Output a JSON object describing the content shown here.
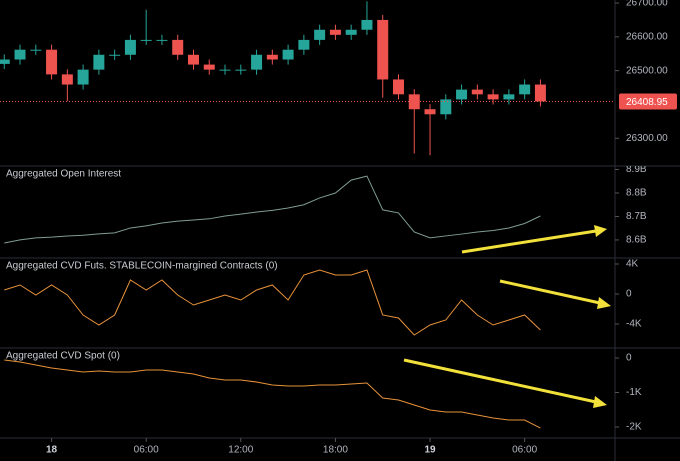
{
  "chart_data": [
    {
      "type": "candlestick",
      "x": [
        -3,
        -2,
        -1,
        0,
        1,
        2,
        3,
        4,
        5,
        6,
        7,
        8,
        9,
        10,
        11,
        12,
        13,
        14,
        15,
        16,
        17,
        18,
        19,
        20,
        21,
        22,
        23,
        24,
        25,
        26,
        27,
        28,
        29,
        30,
        31
      ],
      "open": [
        26520,
        26533,
        26562,
        26562,
        26489,
        26459,
        26503,
        26547,
        26547,
        26591,
        26591,
        26591,
        26547,
        26518,
        26503,
        26503,
        26503,
        26547,
        26533,
        26562,
        26591,
        26621,
        26606,
        26621,
        26650,
        26474,
        26430,
        26386,
        26371,
        26415,
        26444,
        26430,
        26415,
        26430,
        26459
      ],
      "high": [
        26548,
        26577,
        26577,
        26577,
        26504,
        26518,
        26562,
        26562,
        26606,
        26680,
        26606,
        26606,
        26562,
        26533,
        26518,
        26518,
        26562,
        26562,
        26577,
        26606,
        26636,
        26636,
        26636,
        26705,
        26665,
        26489,
        26445,
        26401,
        26430,
        26459,
        26459,
        26445,
        26445,
        26474,
        26474
      ],
      "low": [
        26505,
        26518,
        26547,
        26474,
        26410,
        26444,
        26488,
        26532,
        26532,
        26576,
        26576,
        26532,
        26503,
        26488,
        26488,
        26488,
        26488,
        26518,
        26518,
        26547,
        26576,
        26591,
        26591,
        26606,
        26420,
        26415,
        26255,
        26250,
        26356,
        26400,
        26415,
        26400,
        26400,
        26415,
        26394
      ],
      "close": [
        26533,
        26562,
        26562,
        26489,
        26459,
        26503,
        26547,
        26547,
        26591,
        26591,
        26591,
        26547,
        26518,
        26503,
        26503,
        26503,
        26547,
        26533,
        26562,
        26591,
        26621,
        26606,
        26621,
        26650,
        26474,
        26430,
        26386,
        26371,
        26415,
        26444,
        26430,
        26415,
        26430,
        26459,
        26409
      ],
      "up_color": "#26a69a",
      "down_color": "#ef5350",
      "xlim": [
        -3.27,
        35.73
      ],
      "ylim": [
        26221,
        26709
      ],
      "yticks": [
        {
          "value": 26300,
          "label": "26300.00"
        },
        {
          "value": 26500,
          "label": "26500.00"
        },
        {
          "value": 26600,
          "label": "26600.00"
        },
        {
          "value": 26700,
          "label": "26700.00"
        }
      ],
      "last_price": 26408.95,
      "last_price_color": "#ef5350"
    },
    {
      "type": "line",
      "title": "Aggregated Open Interest",
      "x": [
        -3,
        -2,
        -1,
        0,
        1,
        2,
        3,
        4,
        5,
        6,
        7,
        8,
        9,
        10,
        11,
        12,
        13,
        14,
        15,
        16,
        17,
        18,
        19,
        20,
        21,
        22,
        23,
        24,
        25,
        26,
        27,
        28,
        29,
        30,
        31
      ],
      "values": [
        8.587,
        8.6,
        8.609,
        8.612,
        8.617,
        8.62,
        8.626,
        8.63,
        8.651,
        8.66,
        8.672,
        8.68,
        8.685,
        8.69,
        8.702,
        8.71,
        8.719,
        8.726,
        8.736,
        8.75,
        8.779,
        8.8,
        8.855,
        8.872,
        8.728,
        8.715,
        8.634,
        8.609,
        8.617,
        8.625,
        8.634,
        8.64,
        8.651,
        8.67,
        8.702
      ],
      "color": "#7f9c95",
      "xlim": [
        -3.27,
        35.73
      ],
      "ylim": [
        8.523,
        8.915
      ],
      "yticks": [
        {
          "value": 8.6,
          "label": "8.6B"
        },
        {
          "value": 8.7,
          "label": "8.7B"
        },
        {
          "value": 8.8,
          "label": "8.8B"
        },
        {
          "value": 8.9,
          "label": "8.9B"
        }
      ]
    },
    {
      "type": "line",
      "title": "Aggregated CVD Futs. STABLECOIN-margined Contracts (0)",
      "x": [
        -3,
        -2,
        -1,
        0,
        1,
        2,
        3,
        4,
        5,
        6,
        7,
        8,
        9,
        10,
        11,
        12,
        13,
        14,
        15,
        16,
        17,
        18,
        19,
        20,
        21,
        22,
        23,
        24,
        25,
        26,
        27,
        28,
        29,
        30,
        31
      ],
      "values": [
        533,
        1200,
        -133,
        1200,
        -133,
        -2800,
        -4133,
        -2800,
        1867,
        533,
        1867,
        -133,
        -1467,
        -800,
        -133,
        -800,
        533,
        1200,
        -800,
        2533,
        3200,
        2533,
        2533,
        3200,
        -2800,
        -3200,
        -5467,
        -4133,
        -3467,
        -800,
        -2800,
        -4133,
        -3467,
        -2800,
        -4800
      ],
      "color": "#e8923a",
      "xlim": [
        -3.27,
        35.73
      ],
      "ylim": [
        -7200,
        4800
      ],
      "yticks": [
        {
          "value": -4000,
          "label": "-4K"
        },
        0,
        {
          "value": 4000,
          "label": "4K"
        }
      ]
    },
    {
      "type": "line",
      "title": "Aggregated CVD Spot (0)",
      "x": [
        -3,
        -2,
        -1,
        0,
        1,
        2,
        3,
        4,
        5,
        6,
        7,
        8,
        9,
        10,
        11,
        12,
        13,
        14,
        15,
        16,
        17,
        18,
        19,
        20,
        21,
        22,
        23,
        24,
        25,
        26,
        27,
        28,
        29,
        30,
        31
      ],
      "values": [
        -58,
        -116,
        -203,
        -290,
        -348,
        -406,
        -377,
        -406,
        -406,
        -348,
        -348,
        -406,
        -464,
        -580,
        -638,
        -638,
        -696,
        -783,
        -812,
        -812,
        -783,
        -783,
        -754,
        -725,
        -1160,
        -1218,
        -1363,
        -1508,
        -1566,
        -1566,
        -1653,
        -1740,
        -1798,
        -1798,
        -2030
      ],
      "color": "#e8923a",
      "xlim": [
        -3.27,
        35.73
      ],
      "ylim": [
        -2319,
        290
      ],
      "yticks": [
        {
          "value": -2000,
          "label": "-2K"
        },
        {
          "value": -1000,
          "label": "-1K"
        },
        0
      ],
      "xticks": [
        {
          "value": 0,
          "label": "18"
        },
        {
          "value": 6,
          "label": "06:00"
        },
        {
          "value": 12,
          "label": "12:00"
        },
        {
          "value": 18,
          "label": "18:00"
        },
        {
          "value": 24,
          "label": "19"
        },
        {
          "value": 30,
          "label": "06:00"
        }
      ]
    }
  ]
}
